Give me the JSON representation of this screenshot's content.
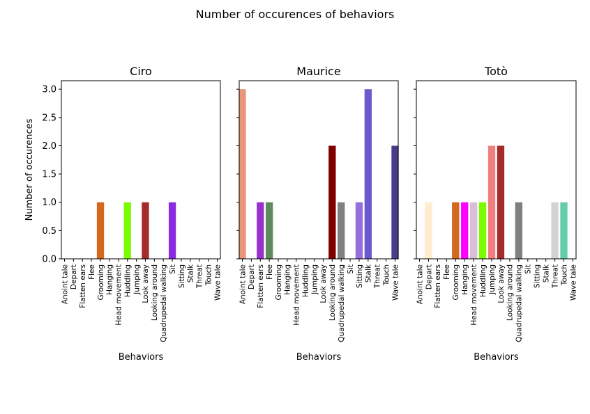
{
  "figure_title": "Number of occurences of behaviors",
  "chart_data": [
    {
      "type": "bar",
      "title": "Ciro",
      "xlabel": "Behaviors",
      "ylabel": "Number of occurences",
      "ylim": [
        0,
        3.15
      ],
      "yticks": [
        "0.0",
        "0.5",
        "1.0",
        "1.5",
        "2.0",
        "2.5",
        "3.0"
      ],
      "categories": [
        "Anoint tale",
        "Depart",
        "Flatten ears",
        "Flee",
        "Grooming",
        "Hanging",
        "Head movement",
        "Huddling",
        "Jumping",
        "Look away",
        "Looking around",
        "Quadrupedal walking",
        "Sit",
        "Sitting",
        "Stalk",
        "Threat",
        "Touch",
        "Wave tale"
      ],
      "values": [
        0,
        0,
        0,
        0,
        1,
        0,
        0,
        1,
        0,
        1,
        0,
        0,
        1,
        0,
        0,
        0,
        0,
        0
      ],
      "colors": [
        "#e9967a",
        "#ffebcd",
        "#9932cc",
        "#556b2f",
        "#d2691e",
        "#ff00ff",
        "#d8bfd8",
        "#7cfc00",
        "#f08080",
        "#a52a2a",
        "#800000",
        "#808080",
        "#8a2be2",
        "#9370db",
        "#6a5acd",
        "#d3d3d3",
        "#66cdaa",
        "#483d8b"
      ]
    },
    {
      "type": "bar",
      "title": "Maurice",
      "xlabel": "Behaviors",
      "ylabel": "",
      "ylim": [
        0,
        3.15
      ],
      "yticks": [
        "0.0",
        "0.5",
        "1.0",
        "1.5",
        "2.0",
        "2.5",
        "3.0"
      ],
      "categories": [
        "Anoint tale",
        "Depart",
        "Flatten ears",
        "Flee",
        "Grooming",
        "Hanging",
        "Head movement",
        "Huddling",
        "Jumping",
        "Look away",
        "Looking around",
        "Quadrupedal walking",
        "Sit",
        "Sitting",
        "Stalk",
        "Threat",
        "Touch",
        "Wave tale"
      ],
      "values": [
        3,
        0,
        1,
        1,
        0,
        0,
        0,
        0,
        0,
        0,
        2,
        1,
        0,
        1,
        3,
        0,
        0,
        2
      ],
      "colors": [
        "#e9967a",
        "#ffebcd",
        "#9932cc",
        "#5f8a5f",
        "#d2691e",
        "#ff00ff",
        "#d8bfd8",
        "#7cfc00",
        "#f08080",
        "#a52a2a",
        "#800000",
        "#808080",
        "#8a2be2",
        "#9370db",
        "#6a5acd",
        "#d3d3d3",
        "#66cdaa",
        "#483d8b"
      ]
    },
    {
      "type": "bar",
      "title": "Totò",
      "xlabel": "Behaviors",
      "ylabel": "",
      "ylim": [
        0,
        3.15
      ],
      "yticks": [
        "0.0",
        "0.5",
        "1.0",
        "1.5",
        "2.0",
        "2.5",
        "3.0"
      ],
      "categories": [
        "Anoint tale",
        "Depart",
        "Flatten ears",
        "Flee",
        "Grooming",
        "Hanging",
        "Head movement",
        "Huddling",
        "Jumping",
        "Look away",
        "Looking around",
        "Quadrupedal walking",
        "Sit",
        "Sitting",
        "Stalk",
        "Threat",
        "Touch",
        "Wave tale"
      ],
      "values": [
        0,
        1,
        0,
        0,
        1,
        1,
        1,
        1,
        2,
        2,
        0,
        1,
        0,
        0,
        0,
        1,
        1,
        0
      ],
      "colors": [
        "#e9967a",
        "#ffebcd",
        "#9932cc",
        "#556b2f",
        "#d2691e",
        "#ff00ff",
        "#d8bfd8",
        "#7cfc00",
        "#f08080",
        "#a52a2a",
        "#800000",
        "#808080",
        "#8a2be2",
        "#9370db",
        "#6a5acd",
        "#d3d3d3",
        "#66cdaa",
        "#483d8b"
      ]
    }
  ]
}
